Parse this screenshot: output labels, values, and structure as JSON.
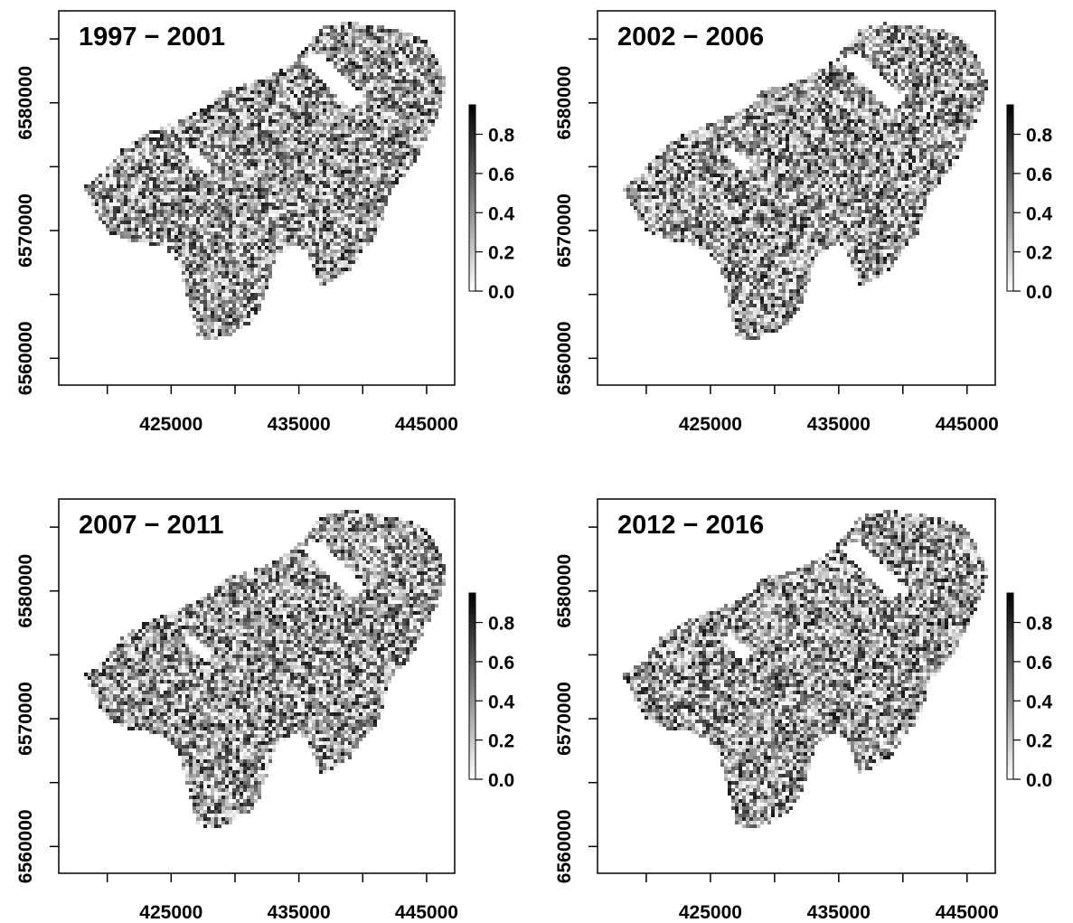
{
  "figure": {
    "panels": [
      {
        "title": "1997 − 2001",
        "seed": 11
      },
      {
        "title": "2002 − 2006",
        "seed": 23
      },
      {
        "title": "2007 − 2011",
        "seed": 37
      },
      {
        "title": "2012 − 2016",
        "seed": 53
      }
    ],
    "x_ticks": [
      420000,
      425000,
      430000,
      435000,
      440000,
      445000,
      450000
    ],
    "x_tick_labels": [
      "425000",
      "435000",
      "445000"
    ],
    "x_labelled": [
      425000,
      435000,
      445000
    ],
    "y_ticks": [
      6560000,
      6565000,
      6570000,
      6575000,
      6580000,
      6585000
    ],
    "y_tick_labels": [
      "6560000",
      "6570000",
      "6580000"
    ],
    "y_labelled": [
      6560000,
      6570000,
      6580000
    ],
    "x_range": [
      416200,
      447200
    ],
    "y_range": [
      6557900,
      6587200
    ],
    "colorbar": {
      "range": [
        0,
        0.95
      ],
      "ticks": [
        0.0,
        0.2,
        0.4,
        0.6,
        0.8
      ],
      "tick_labels": [
        "0.0",
        "0.2",
        "0.4",
        "0.6",
        "0.8"
      ],
      "colors": [
        "#ffffff",
        "#000000"
      ]
    }
  }
}
